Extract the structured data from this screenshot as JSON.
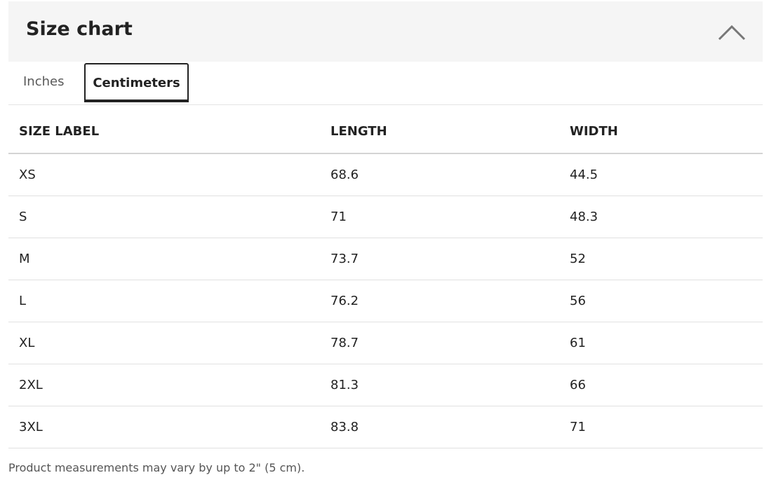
{
  "header": {
    "title": "Size chart"
  },
  "tabs": [
    "Inches",
    "Centimeters"
  ],
  "active_tab": 1,
  "table": {
    "columns": [
      "SIZE LABEL",
      "LENGTH",
      "WIDTH"
    ],
    "rows": [
      [
        "XS",
        "68.6",
        "44.5"
      ],
      [
        "S",
        "71",
        "48.3"
      ],
      [
        "M",
        "73.7",
        "52"
      ],
      [
        "L",
        "76.2",
        "56"
      ],
      [
        "XL",
        "78.7",
        "61"
      ],
      [
        "2XL",
        "81.3",
        "66"
      ],
      [
        "3XL",
        "83.8",
        "71"
      ]
    ]
  },
  "note": "Product measurements may vary by up to 2\" (5 cm)."
}
